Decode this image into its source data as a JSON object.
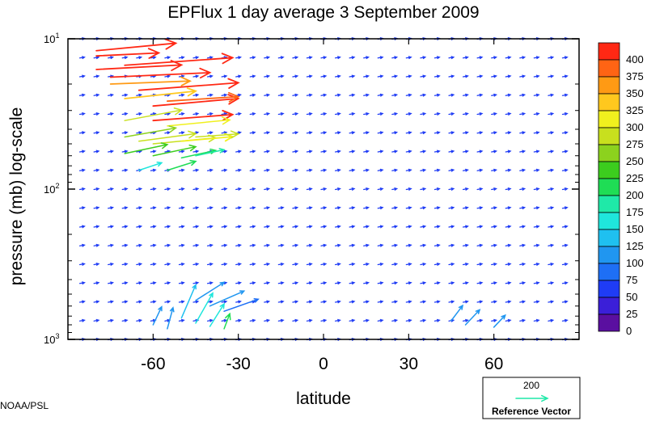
{
  "chart_data": {
    "type": "vector-field",
    "title": "EPFlux  1 day average  3 September 2009",
    "xlabel": "latitude",
    "ylabel": "pressure (mb)  log-scale",
    "xlim": [
      -90,
      90
    ],
    "ylim": [
      1000,
      10
    ],
    "yscale": "log",
    "x_ticks": [
      -60,
      -30,
      0,
      30,
      60
    ],
    "x_tick_labels": [
      "-60",
      "-30",
      "0",
      "30",
      "60"
    ],
    "y_tick_labels": [
      {
        "value": 10,
        "base": "10",
        "exp": "1"
      },
      {
        "value": 100,
        "base": "10",
        "exp": "2"
      },
      {
        "value": 1000,
        "base": "10",
        "exp": "3"
      }
    ],
    "grid": false,
    "colorbar": {
      "placement": "right",
      "levels": [
        0,
        25,
        50,
        75,
        100,
        125,
        150,
        175,
        200,
        225,
        250,
        275,
        300,
        325,
        350,
        375,
        400
      ],
      "colors": [
        "#5a0fa0",
        "#3b1fd8",
        "#1f3cf5",
        "#1e6ff5",
        "#2096f0",
        "#1fc0f0",
        "#1fe6dc",
        "#1fe9a8",
        "#1fdd55",
        "#3ccd1e",
        "#8cd21e",
        "#c8e01e",
        "#f0f01e",
        "#ffc81e",
        "#ff9a14",
        "#ff6414",
        "#ff2814"
      ]
    },
    "reference_vector": {
      "magnitude": "200",
      "label": "Reference Vector",
      "color": "#1fe9a8"
    },
    "vectors": [
      {
        "lat": -80,
        "p": 12,
        "mag": 420,
        "dlat": 28,
        "dlogp": 0.05
      },
      {
        "lat": -80,
        "p": 13,
        "mag": 410,
        "dlat": 22,
        "dlogp": 0.02
      },
      {
        "lat": -80,
        "p": 16,
        "mag": 420,
        "dlat": 30,
        "dlogp": 0.03
      },
      {
        "lat": -75,
        "p": 18,
        "mag": 400,
        "dlat": 35,
        "dlogp": 0.03
      },
      {
        "lat": -70,
        "p": 15,
        "mag": 420,
        "dlat": 38,
        "dlogp": 0.05
      },
      {
        "lat": -75,
        "p": 20,
        "mag": 360,
        "dlat": 28,
        "dlogp": 0.02
      },
      {
        "lat": -65,
        "p": 22,
        "mag": 400,
        "dlat": 35,
        "dlogp": 0.05
      },
      {
        "lat": -70,
        "p": 25,
        "mag": 330,
        "dlat": 25,
        "dlogp": 0.05
      },
      {
        "lat": -60,
        "p": 28,
        "mag": 400,
        "dlat": 30,
        "dlogp": 0.05
      },
      {
        "lat": -55,
        "p": 26,
        "mag": 380,
        "dlat": 25,
        "dlogp": 0.03
      },
      {
        "lat": -70,
        "p": 35,
        "mag": 280,
        "dlat": 20,
        "dlogp": 0.07
      },
      {
        "lat": -60,
        "p": 35,
        "mag": 400,
        "dlat": 28,
        "dlogp": 0.04
      },
      {
        "lat": -55,
        "p": 38,
        "mag": 300,
        "dlat": 22,
        "dlogp": 0.04
      },
      {
        "lat": -70,
        "p": 45,
        "mag": 260,
        "dlat": 18,
        "dlogp": 0.06
      },
      {
        "lat": -65,
        "p": 48,
        "mag": 290,
        "dlat": 20,
        "dlogp": 0.05
      },
      {
        "lat": -60,
        "p": 50,
        "mag": 280,
        "dlat": 22,
        "dlogp": 0.04
      },
      {
        "lat": -50,
        "p": 48,
        "mag": 310,
        "dlat": 18,
        "dlogp": 0.03
      },
      {
        "lat": -45,
        "p": 45,
        "mag": 290,
        "dlat": 15,
        "dlogp": 0.02
      },
      {
        "lat": -70,
        "p": 58,
        "mag": 230,
        "dlat": 15,
        "dlogp": 0.06
      },
      {
        "lat": -60,
        "p": 60,
        "mag": 240,
        "dlat": 15,
        "dlogp": 0.06
      },
      {
        "lat": -50,
        "p": 62,
        "mag": 200,
        "dlat": 12,
        "dlogp": 0.05
      },
      {
        "lat": -45,
        "p": 60,
        "mag": 180,
        "dlat": 10,
        "dlogp": 0.04
      },
      {
        "lat": -65,
        "p": 75,
        "mag": 170,
        "dlat": 8,
        "dlogp": 0.05
      },
      {
        "lat": -55,
        "p": 75,
        "mag": 210,
        "dlat": 10,
        "dlogp": 0.06
      },
      {
        "lat": -50,
        "p": 720,
        "mag": 130,
        "dlat": 5,
        "dlogp": 0.22
      },
      {
        "lat": -45,
        "p": 780,
        "mag": 150,
        "dlat": 6,
        "dlogp": 0.2
      },
      {
        "lat": -40,
        "p": 820,
        "mag": 170,
        "dlat": 5,
        "dlogp": 0.15
      },
      {
        "lat": -35,
        "p": 850,
        "mag": 220,
        "dlat": 2,
        "dlogp": 0.1
      },
      {
        "lat": -55,
        "p": 850,
        "mag": 120,
        "dlat": 2,
        "dlogp": 0.14
      },
      {
        "lat": -60,
        "p": 800,
        "mag": 100,
        "dlat": 3,
        "dlogp": 0.12
      },
      {
        "lat": -45,
        "p": 550,
        "mag": 110,
        "dlat": 10,
        "dlogp": 0.12
      },
      {
        "lat": -40,
        "p": 600,
        "mag": 100,
        "dlat": 12,
        "dlogp": 0.1
      },
      {
        "lat": -35,
        "p": 650,
        "mag": 90,
        "dlat": 12,
        "dlogp": 0.08
      },
      {
        "lat": 50,
        "p": 800,
        "mag": 120,
        "dlat": 5,
        "dlogp": 0.1
      },
      {
        "lat": 45,
        "p": 750,
        "mag": 110,
        "dlat": 4,
        "dlogp": 0.1
      },
      {
        "lat": 60,
        "p": 830,
        "mag": 100,
        "dlat": 4,
        "dlogp": 0.08
      }
    ],
    "background_vector_color": "#1f3cf5"
  },
  "credit": "NOAA/PSL"
}
